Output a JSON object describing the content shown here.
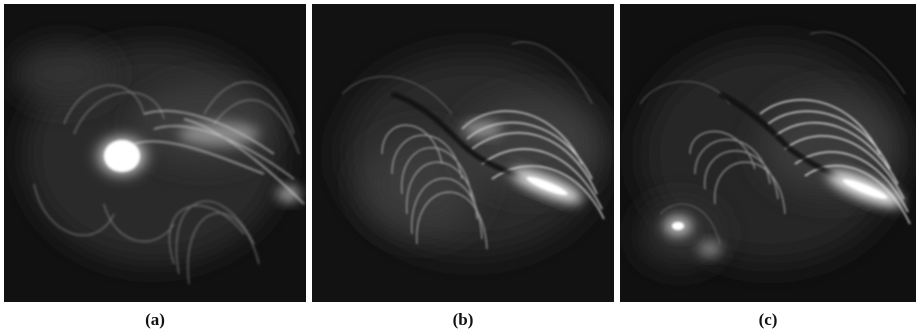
{
  "figure": {
    "panels": [
      {
        "id": "a",
        "caption": "(a)"
      },
      {
        "id": "b",
        "caption": "(b)"
      },
      {
        "id": "c",
        "caption": "(c)"
      }
    ]
  }
}
